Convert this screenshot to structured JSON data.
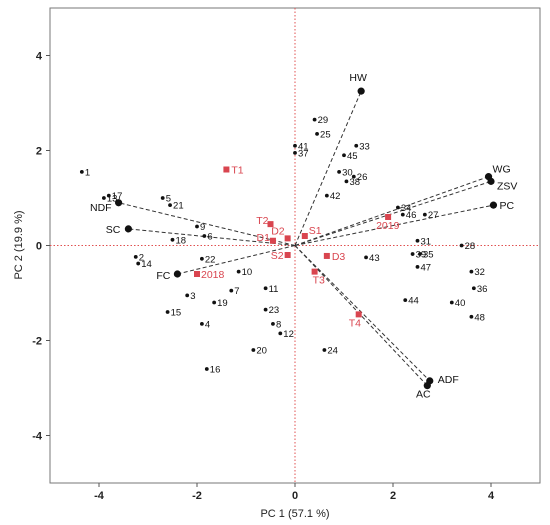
{
  "chart_data": {
    "type": "scatter",
    "subtype": "pca-biplot",
    "xlabel": "PC 1 (57.1 %)",
    "ylabel": "PC 2  (19.9 %)",
    "xlim": [
      -5,
      5
    ],
    "ylim": [
      -5,
      5
    ],
    "xticks": [
      -4,
      -2,
      0,
      2,
      4
    ],
    "yticks": [
      -4,
      -2,
      0,
      2,
      4
    ],
    "reference_lines": {
      "x": 0,
      "y": 0,
      "color": "#e05050",
      "style": "dotted"
    },
    "grid": false,
    "colors": {
      "observations": "#111111",
      "factors": "#d9454f",
      "loadings": "#333333"
    },
    "observations": [
      {
        "label": "1",
        "x": -4.35,
        "y": 1.55
      },
      {
        "label": "2",
        "x": -3.25,
        "y": -0.24
      },
      {
        "label": "3",
        "x": -2.2,
        "y": -1.05
      },
      {
        "label": "4",
        "x": -1.9,
        "y": -1.65
      },
      {
        "label": "5",
        "x": -2.7,
        "y": 1.0
      },
      {
        "label": "6",
        "x": -1.85,
        "y": 0.2
      },
      {
        "label": "7",
        "x": -1.3,
        "y": -0.95
      },
      {
        "label": "8",
        "x": -0.45,
        "y": -1.65
      },
      {
        "label": "9",
        "x": -2.0,
        "y": 0.4
      },
      {
        "label": "10",
        "x": -1.15,
        "y": -0.55
      },
      {
        "label": "11",
        "x": -0.6,
        "y": -0.9
      },
      {
        "label": "12",
        "x": -0.3,
        "y": -1.85
      },
      {
        "label": "13",
        "x": -3.9,
        "y": 1.0
      },
      {
        "label": "14",
        "x": -3.2,
        "y": -0.38
      },
      {
        "label": "15",
        "x": -2.6,
        "y": -1.4
      },
      {
        "label": "16",
        "x": -1.8,
        "y": -2.6
      },
      {
        "label": "17",
        "x": -3.8,
        "y": 1.05
      },
      {
        "label": "18",
        "x": -2.5,
        "y": 0.12
      },
      {
        "label": "19",
        "x": -1.65,
        "y": -1.2
      },
      {
        "label": "20",
        "x": -0.85,
        "y": -2.2
      },
      {
        "label": "21",
        "x": -2.55,
        "y": 0.85
      },
      {
        "label": "22",
        "x": -1.9,
        "y": -0.28
      },
      {
        "label": "23",
        "x": -0.6,
        "y": -1.35
      },
      {
        "label": "24",
        "x": 0.6,
        "y": -2.2
      },
      {
        "label": "25",
        "x": 0.45,
        "y": 2.35
      },
      {
        "label": "26",
        "x": 1.2,
        "y": 1.45
      },
      {
        "label": "27",
        "x": 2.65,
        "y": 0.65
      },
      {
        "label": "28",
        "x": 3.4,
        "y": 0.0
      },
      {
        "label": "29",
        "x": 0.4,
        "y": 2.65
      },
      {
        "label": "30",
        "x": 0.9,
        "y": 1.55
      },
      {
        "label": "31",
        "x": 2.5,
        "y": 0.1
      },
      {
        "label": "32",
        "x": 3.6,
        "y": -0.55
      },
      {
        "label": "33",
        "x": 1.25,
        "y": 2.1
      },
      {
        "label": "34",
        "x": 2.1,
        "y": 0.8
      },
      {
        "label": "35",
        "x": 2.55,
        "y": -0.18
      },
      {
        "label": "36",
        "x": 3.65,
        "y": -0.9
      },
      {
        "label": "37",
        "x": 0.0,
        "y": 1.95
      },
      {
        "label": "38",
        "x": 1.05,
        "y": 1.35
      },
      {
        "label": "39",
        "x": 2.4,
        "y": -0.18
      },
      {
        "label": "40",
        "x": 3.2,
        "y": -1.2
      },
      {
        "label": "41",
        "x": 0.0,
        "y": 2.1
      },
      {
        "label": "42",
        "x": 0.65,
        "y": 1.05
      },
      {
        "label": "43",
        "x": 1.45,
        "y": -0.25
      },
      {
        "label": "44",
        "x": 2.25,
        "y": -1.15
      },
      {
        "label": "45",
        "x": 1.0,
        "y": 1.9
      },
      {
        "label": "46",
        "x": 2.2,
        "y": 0.65
      },
      {
        "label": "47",
        "x": 2.5,
        "y": -0.45
      },
      {
        "label": "48",
        "x": 3.6,
        "y": -1.5
      }
    ],
    "factor_levels": [
      {
        "label": "T1",
        "x": -1.4,
        "y": 1.6
      },
      {
        "label": "T2",
        "x": -0.5,
        "y": 0.45
      },
      {
        "label": "D1",
        "x": -0.45,
        "y": 0.1
      },
      {
        "label": "D2",
        "x": -0.15,
        "y": 0.15
      },
      {
        "label": "S1",
        "x": 0.2,
        "y": 0.2
      },
      {
        "label": "S2",
        "x": -0.15,
        "y": -0.2
      },
      {
        "label": "D3",
        "x": 0.65,
        "y": -0.22
      },
      {
        "label": "T3",
        "x": 0.4,
        "y": -0.55
      },
      {
        "label": "T4",
        "x": 1.3,
        "y": -1.45
      },
      {
        "label": "2018",
        "x": -2.0,
        "y": -0.6
      },
      {
        "label": "2019",
        "x": 1.9,
        "y": 0.6
      }
    ],
    "loadings": [
      {
        "label": "HW",
        "x": 1.35,
        "y": 3.25
      },
      {
        "label": "WG",
        "x": 3.95,
        "y": 1.45
      },
      {
        "label": "ZSV",
        "x": 4.0,
        "y": 1.35
      },
      {
        "label": "PC",
        "x": 4.05,
        "y": 0.85
      },
      {
        "label": "NDF",
        "x": -3.6,
        "y": 0.9
      },
      {
        "label": "SC",
        "x": -3.4,
        "y": 0.35
      },
      {
        "label": "FC",
        "x": -2.4,
        "y": -0.6
      },
      {
        "label": "ADF",
        "x": 2.75,
        "y": -2.85
      },
      {
        "label": "AC",
        "x": 2.7,
        "y": -2.95
      }
    ]
  }
}
